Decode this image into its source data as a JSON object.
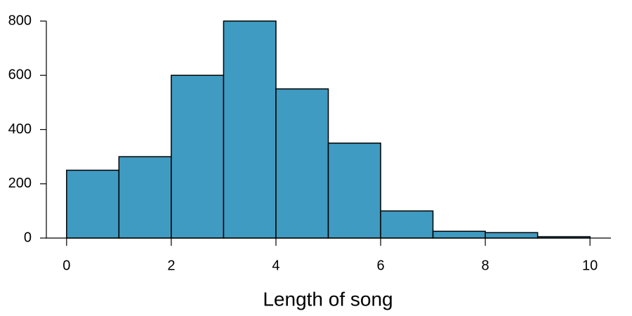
{
  "chart_data": {
    "type": "histogram",
    "x_label": "Length of song",
    "bins": [
      0,
      1,
      2,
      3,
      4,
      5,
      6,
      7,
      8,
      9,
      10
    ],
    "values": [
      250,
      300,
      600,
      800,
      550,
      350,
      100,
      25,
      20,
      5
    ],
    "color": "#3f9bc1",
    "xlim": [
      -0.4,
      10.4
    ],
    "xticks": [
      0,
      2,
      4,
      6,
      8,
      10
    ],
    "ylim": [
      0,
      800
    ],
    "yticks": [
      0,
      200,
      400,
      600,
      800
    ],
    "grid": false
  }
}
